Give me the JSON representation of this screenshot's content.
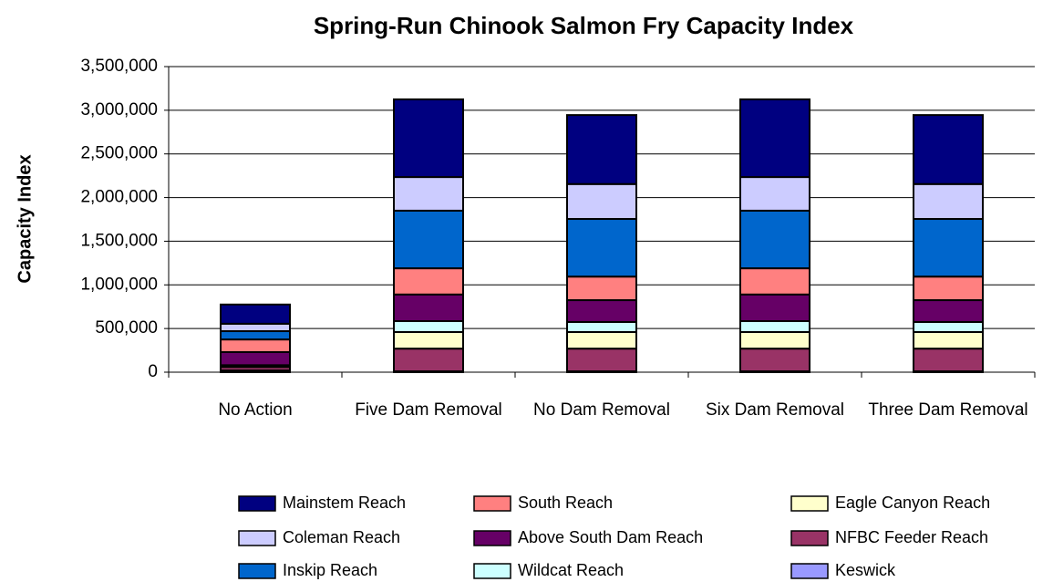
{
  "chart_data": {
    "type": "stacked_bar",
    "title": "Spring-Run Chinook Salmon Fry Capacity Index",
    "y_label": "Capacity Index",
    "categories": [
      "No Action",
      "Five Dam Removal",
      "No Dam Removal",
      "Six Dam Removal",
      "Three Dam Removal"
    ],
    "series": [
      {
        "name": "Keswick",
        "color": "#9999ff",
        "values": [
          20000,
          10000,
          10000,
          10000,
          10000
        ]
      },
      {
        "name": "NFBC Feeder Reach",
        "color": "#993366",
        "values": [
          40000,
          260000,
          260000,
          260000,
          260000
        ]
      },
      {
        "name": "Eagle Canyon Reach",
        "color": "#ffffcc",
        "values": [
          10000,
          190000,
          190000,
          190000,
          190000
        ]
      },
      {
        "name": "Wildcat Reach",
        "color": "#ccffff",
        "values": [
          10000,
          125000,
          115000,
          125000,
          115000
        ]
      },
      {
        "name": "Above South Dam Reach",
        "color": "#660066",
        "values": [
          150000,
          305000,
          250000,
          305000,
          250000
        ]
      },
      {
        "name": "South Reach",
        "color": "#ff8080",
        "values": [
          145000,
          300000,
          270000,
          300000,
          270000
        ]
      },
      {
        "name": "Inskip Reach",
        "color": "#0066cc",
        "values": [
          95000,
          660000,
          660000,
          660000,
          660000
        ]
      },
      {
        "name": "Coleman Reach",
        "color": "#ccccff",
        "values": [
          85000,
          385000,
          400000,
          385000,
          400000
        ]
      },
      {
        "name": "Mainstem Reach",
        "color": "#000080",
        "values": [
          220000,
          890000,
          790000,
          890000,
          790000
        ]
      }
    ],
    "ylim": [
      0,
      3500000
    ],
    "yticks": [
      0,
      {
        "value": 500000,
        "label": "500,000"
      },
      {
        "value": 1000000,
        "label": "1,000,000"
      },
      {
        "value": 1500000,
        "label": "1,500,000"
      },
      {
        "value": 2000000,
        "label": "2,000,000"
      },
      {
        "value": 2500000,
        "label": "2,500,000"
      },
      {
        "value": 3000000,
        "label": "3,000,000"
      },
      {
        "value": 3500000,
        "label": "3,500,000"
      }
    ],
    "grid": true
  }
}
